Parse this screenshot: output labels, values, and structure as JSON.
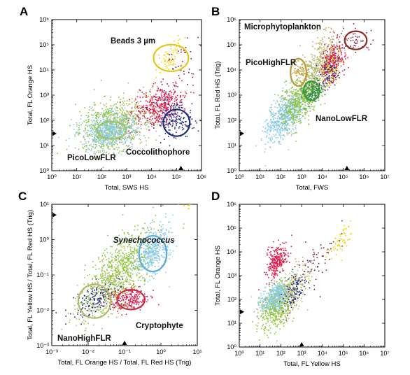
{
  "chart_data": [
    {
      "type": "scatter",
      "panel": "A",
      "xlabel": "Total, SWS HS",
      "ylabel": "Total, FL Orange HS",
      "xscale": "log",
      "yscale": "log",
      "xlim": [
        1,
        1000000
      ],
      "ylim": [
        1,
        1000000
      ],
      "x_ticks": [
        "10⁰",
        "10¹",
        "10²",
        "10³",
        "10⁴",
        "10⁵",
        "10⁶"
      ],
      "y_ticks": [
        "10⁰",
        "10¹",
        "10²",
        "10³",
        "10⁴",
        "10⁵",
        "10⁶"
      ],
      "clusters": [
        {
          "color": "#8fc43a",
          "center": [
            200,
            60
          ],
          "spread": [
            4.0,
            3.0
          ],
          "count": 650,
          "tilt": 0.25
        },
        {
          "color": "#b5b76e",
          "center": [
            1500,
            100
          ],
          "spread": [
            5.0,
            3.5
          ],
          "count": 260,
          "tilt": 0.35
        },
        {
          "color": "#8ccbf2",
          "center": [
            200,
            40
          ],
          "spread": [
            3.5,
            2.2
          ],
          "count": 520,
          "tilt": 0.1
        },
        {
          "color": "#e0194a",
          "center": [
            20000,
            400
          ],
          "spread": [
            3.0,
            2.5
          ],
          "count": 380,
          "tilt": 0.3
        },
        {
          "color": "#1f2a80",
          "center": [
            80000,
            100
          ],
          "spread": [
            2.5,
            2.5
          ],
          "count": 170,
          "tilt": 0.0
        },
        {
          "color": "#f5d300",
          "center": [
            60000,
            40000
          ],
          "spread": [
            1.8,
            1.8
          ],
          "count": 70,
          "tilt": 0.8
        },
        {
          "color": "#7a1f4a",
          "center": [
            150000,
            20000
          ],
          "spread": [
            3.0,
            3.0
          ],
          "count": 45,
          "tilt": 0.5
        }
      ],
      "gates": [
        {
          "label": "Beads 3 µm",
          "color": "#e7c61a",
          "center": [
            60000,
            30000
          ],
          "radius": [
            5,
            3.4
          ]
        },
        {
          "label": "PicoLowFLR",
          "color": "#9bc46a",
          "center": [
            250,
            40
          ],
          "radius": [
            3.8,
            2.2
          ]
        },
        {
          "label": "Coccolithophore",
          "color": "#1e2b7a",
          "center": [
            100000,
            80
          ],
          "radius": [
            3.4,
            3.4
          ]
        }
      ],
      "markers": [
        {
          "axis": "x",
          "value": 150000
        },
        {
          "axis": "y",
          "value": 30
        }
      ]
    },
    {
      "type": "scatter",
      "panel": "B",
      "xlabel": "Total, FWS",
      "ylabel": "Total, FL Red HS (Trig)",
      "xscale": "log",
      "yscale": "log",
      "xlim": [
        1,
        10000000
      ],
      "ylim": [
        1,
        1000000
      ],
      "x_ticks": [
        "10⁰",
        "10¹",
        "10²",
        "10³",
        "10⁴",
        "10⁵",
        "10⁶",
        "10⁷"
      ],
      "y_ticks": [
        "10⁰",
        "10¹",
        "10²",
        "10³",
        "10⁴",
        "10⁵",
        "10⁶"
      ],
      "clusters": [
        {
          "color": "#8ccbf2",
          "center": [
            150,
            150
          ],
          "spread": [
            3.0,
            2.5
          ],
          "count": 620,
          "tilt": 0.7
        },
        {
          "color": "#8fc43a",
          "center": [
            800,
            800
          ],
          "spread": [
            3.2,
            3.0
          ],
          "count": 520,
          "tilt": 0.8
        },
        {
          "color": "#b5b76e",
          "center": [
            8000,
            20000
          ],
          "spread": [
            2.8,
            3.2
          ],
          "count": 420,
          "tilt": 0.8
        },
        {
          "color": "#e0194a",
          "center": [
            30000,
            20000
          ],
          "spread": [
            2.0,
            2.5
          ],
          "count": 260,
          "tilt": 0.6
        },
        {
          "color": "#f5d300",
          "center": [
            30000,
            10000
          ],
          "spread": [
            1.6,
            2.0
          ],
          "count": 60,
          "tilt": 0.6
        },
        {
          "color": "#2a8a3a",
          "center": [
            3000,
            1500
          ],
          "spread": [
            1.8,
            1.6
          ],
          "count": 180,
          "tilt": 0.3
        },
        {
          "color": "#c9a040",
          "center": [
            800,
            10000
          ],
          "spread": [
            1.6,
            1.6
          ],
          "count": 70,
          "tilt": 0.0
        },
        {
          "color": "#7a1f4a",
          "center": [
            400000,
            150000
          ],
          "spread": [
            2.4,
            1.6
          ],
          "count": 45,
          "tilt": 0.0
        },
        {
          "color": "#1f2a80",
          "center": [
            25000,
            8000
          ],
          "spread": [
            2.0,
            2.0
          ],
          "count": 70,
          "tilt": 0.4
        }
      ],
      "gates": [
        {
          "label": "Microphytoplankton",
          "color": "#8a2a1e",
          "center": [
            400000,
            150000
          ],
          "radius": [
            3.4,
            2.3
          ]
        },
        {
          "label": "PicoHighFLR",
          "color": "#b99a3a",
          "center": [
            700,
            8000
          ],
          "radius": [
            2.4,
            3.5
          ]
        },
        {
          "label": "NanoLowFLR",
          "color": "#3a9a3a",
          "center": [
            3000,
            1500
          ],
          "radius": [
            2.4,
            2.4
          ]
        }
      ],
      "markers": [
        {
          "axis": "x",
          "value": 150000
        },
        {
          "axis": "y",
          "value": 30
        }
      ]
    },
    {
      "type": "scatter",
      "panel": "C",
      "xlabel": "Total, FL Orange HS / Total, FL Red HS (Trig)",
      "ylabel": "Total, FL Yellow HS / Total, FL Red HS (Trig)",
      "xscale": "log",
      "yscale": "log",
      "xlim": [
        0.001,
        10
      ],
      "ylim": [
        0.001,
        10
      ],
      "x_ticks": [
        "10⁻³",
        "10⁻²",
        "10⁻¹",
        "10⁰",
        "10¹"
      ],
      "y_ticks": [
        "10⁻³",
        "10⁻²",
        "10⁻¹",
        "10⁰",
        "10¹"
      ],
      "clusters": [
        {
          "color": "#8fc43a",
          "center": [
            0.08,
            0.15
          ],
          "spread": [
            3.0,
            2.8
          ],
          "count": 750,
          "tilt": 0.75
        },
        {
          "color": "#b5b76e",
          "center": [
            0.02,
            0.03
          ],
          "spread": [
            2.2,
            2.0
          ],
          "count": 170,
          "tilt": 0.6
        },
        {
          "color": "#1f2a80",
          "center": [
            0.015,
            0.02
          ],
          "spread": [
            2.2,
            1.6
          ],
          "count": 140,
          "tilt": 0.5
        },
        {
          "color": "#e0194a",
          "center": [
            0.12,
            0.02
          ],
          "spread": [
            1.8,
            1.5
          ],
          "count": 200,
          "tilt": 0.1
        },
        {
          "color": "#8ccbf2",
          "center": [
            0.6,
            0.5
          ],
          "spread": [
            1.7,
            2.0
          ],
          "count": 380,
          "tilt": 0.6
        },
        {
          "color": "#f5d300",
          "center": [
            5,
            15
          ],
          "spread": [
            1.25,
            1.4
          ],
          "count": 45,
          "tilt": 0.0
        }
      ],
      "gates": [
        {
          "label": "Synechococcus",
          "color": "#5aa9d8",
          "center": [
            0.6,
            0.4
          ],
          "radius": [
            2.4,
            3.2
          ]
        },
        {
          "label": "NanoHighFLR",
          "color": "#b5b76e",
          "center": [
            0.015,
            0.018
          ],
          "radius": [
            2.8,
            3.0
          ]
        },
        {
          "label": "Cryptophyte",
          "color": "#c8283e",
          "center": [
            0.15,
            0.02
          ],
          "radius": [
            2.4,
            1.9
          ]
        }
      ],
      "markers": [
        {
          "axis": "x",
          "value": 0.1
        },
        {
          "axis": "y",
          "value": 5
        }
      ]
    },
    {
      "type": "scatter",
      "panel": "D",
      "xlabel": "Total, FL Yellow HS",
      "ylabel": "Total, FL Orange HS",
      "xscale": "log",
      "yscale": "log",
      "xlim": [
        1,
        10000000
      ],
      "ylim": [
        1,
        1000000
      ],
      "x_ticks": [
        "10⁰",
        "10¹",
        "10²",
        "10³",
        "10⁴",
        "10⁵",
        "10⁶",
        "10⁷"
      ],
      "y_ticks": [
        "10⁰",
        "10¹",
        "10²",
        "10³",
        "10⁴",
        "10⁵",
        "10⁶"
      ],
      "clusters": [
        {
          "color": "#8fc43a",
          "center": [
            60,
            60
          ],
          "spread": [
            2.5,
            2.8
          ],
          "count": 560,
          "tilt": 0.6
        },
        {
          "color": "#8ccbf2",
          "center": [
            50,
            150
          ],
          "spread": [
            2.2,
            2.0
          ],
          "count": 360,
          "tilt": 0.5
        },
        {
          "color": "#e0194a",
          "center": [
            60,
            4000
          ],
          "spread": [
            1.8,
            2.2
          ],
          "count": 260,
          "tilt": 0.6
        },
        {
          "color": "#b5b76e",
          "center": [
            400,
            300
          ],
          "spread": [
            2.6,
            3.0
          ],
          "count": 200,
          "tilt": 0.7
        },
        {
          "color": "#1f2a80",
          "center": [
            400,
            200
          ],
          "spread": [
            2.0,
            2.2
          ],
          "count": 90,
          "tilt": 0.7
        },
        {
          "color": "#f5d300",
          "center": [
            60000,
            30000
          ],
          "spread": [
            2.2,
            1.8
          ],
          "count": 60,
          "tilt": 0.9
        },
        {
          "color": "#7a1f4a",
          "center": [
            3000,
            2000
          ],
          "spread": [
            4.0,
            4.0
          ],
          "count": 70,
          "tilt": 0.8
        }
      ],
      "gates": [],
      "markers": [
        {
          "axis": "x",
          "value": 1000
        },
        {
          "axis": "y",
          "value": 30
        }
      ]
    }
  ]
}
